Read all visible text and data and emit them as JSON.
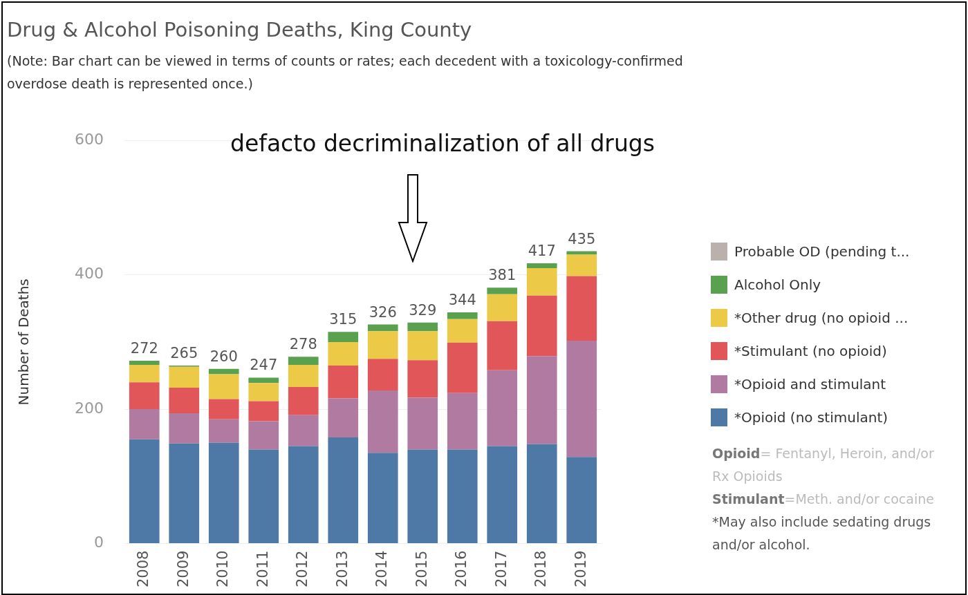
{
  "chart_data": {
    "type": "bar",
    "title": "Drug & Alcohol Poisoning Deaths, King County",
    "subtitle": "(Note: Bar chart can be viewed in terms of counts or rates; each decedent with a toxicology-confirmed overdose death is represented once.)",
    "ylabel": "Number of Deaths",
    "categories": [
      "2008",
      "2009",
      "2010",
      "2011",
      "2012",
      "2013",
      "2014",
      "2015",
      "2016",
      "2017",
      "2018",
      "2019"
    ],
    "stacked": true,
    "series": [
      {
        "name": "*Opioid (no stimulant)",
        "color": "#4e79a7",
        "values": [
          155,
          149,
          150,
          140,
          145,
          158,
          135,
          140,
          140,
          145,
          148,
          129
        ]
      },
      {
        "name": "*Opioid and stimulant",
        "color": "#b07aa1",
        "values": [
          45,
          45,
          35,
          42,
          46,
          58,
          93,
          77,
          84,
          113,
          131,
          173
        ]
      },
      {
        "name": "*Stimulant (no opioid)",
        "color": "#e15759",
        "values": [
          40,
          38,
          30,
          30,
          42,
          49,
          47,
          56,
          75,
          73,
          90,
          96
        ]
      },
      {
        "name": "*Other drug (no opioid ...",
        "color": "#edc948",
        "values": [
          26,
          31,
          37,
          27,
          33,
          35,
          41,
          43,
          35,
          40,
          41,
          32
        ]
      },
      {
        "name": "Alcohol Only",
        "color": "#59a14f",
        "values": [
          6,
          2,
          8,
          8,
          12,
          15,
          10,
          13,
          10,
          10,
          7,
          5
        ]
      },
      {
        "name": "Probable OD (pending t...",
        "color": "#bab0ac",
        "values": [
          null,
          null,
          null,
          null,
          null,
          null,
          null,
          null,
          null,
          null,
          null,
          null
        ]
      }
    ],
    "totals": [
      "272",
      "265",
      "260",
      "247",
      "278",
      "315",
      "326",
      "329",
      "344",
      "381",
      "417",
      "435"
    ],
    "ylim": [
      0,
      600
    ],
    "yticks": [
      0,
      200,
      400,
      600
    ],
    "grid": "y",
    "legend": "right",
    "annotations": [
      "defacto decriminalization of all drugs",
      "Opioid= Fentanyl, Heroin, and/or Rx Opioids",
      "Stimulant=Meth. and/or cocaine",
      "*May also include sedating drugs and/or alcohol."
    ]
  }
}
